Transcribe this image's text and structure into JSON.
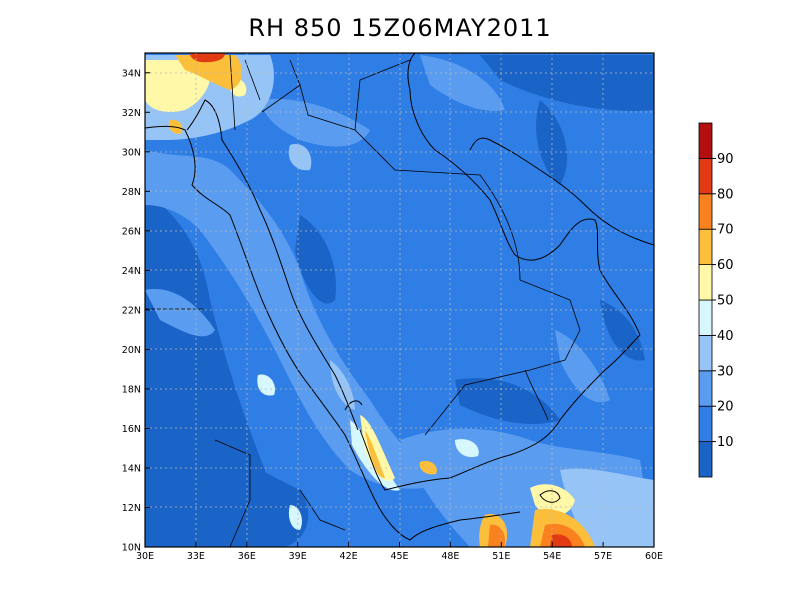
{
  "title": "RH 850  15Z06MAY2011",
  "map": {
    "lon_range": [
      30,
      60
    ],
    "lat_range": [
      10,
      35
    ],
    "x_ticks": [
      "30E",
      "33E",
      "36E",
      "39E",
      "42E",
      "45E",
      "48E",
      "51E",
      "54E",
      "57E",
      "60E"
    ],
    "y_ticks": [
      "10N",
      "12N",
      "14N",
      "16N",
      "18N",
      "20N",
      "22N",
      "24N",
      "26N",
      "28N",
      "30N",
      "32N",
      "34N"
    ],
    "grid": "dotted"
  },
  "colorbar": {
    "labels": [
      "10",
      "20",
      "30",
      "40",
      "50",
      "60",
      "70",
      "80",
      "90"
    ],
    "colors": [
      "#1a64c8",
      "#2f7ee6",
      "#5a9cf0",
      "#96c4f7",
      "#d7f7ff",
      "#fff8a8",
      "#fbbf3c",
      "#f9821e",
      "#e23a12",
      "#b40f0f"
    ]
  }
}
